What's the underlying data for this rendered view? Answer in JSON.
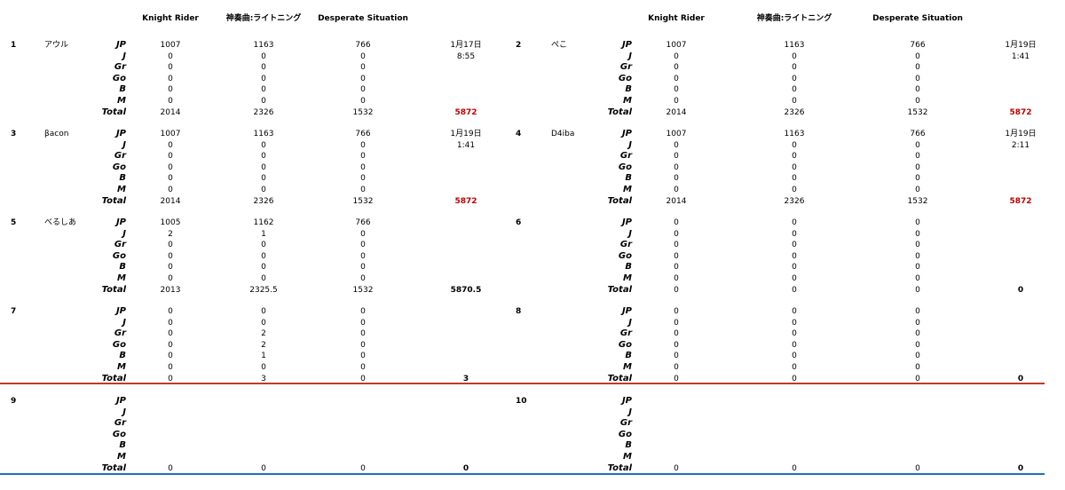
{
  "headers_left": [
    "Knight Rider",
    "神奏曲:ライトニング",
    "Desperate Situation"
  ],
  "headers_right": [
    "Knight Rider",
    "神奏曲:ライトニング",
    "Desperate Situation"
  ],
  "row_labels": [
    "JP",
    "J",
    "Gr",
    "Go",
    "B",
    "M",
    "Total"
  ],
  "blocks": [
    {
      "number": "1",
      "name": "アウル",
      "rows": [
        [
          1007,
          1163,
          766
        ],
        [
          0,
          0,
          0
        ],
        [
          0,
          0,
          0
        ],
        [
          0,
          0,
          0
        ],
        [
          0,
          0,
          0
        ],
        [
          0,
          0,
          0
        ]
      ],
      "total": [
        2014,
        2326,
        1532
      ],
      "grand_total": 5872,
      "total_color": "#c00000",
      "date": "1月17日",
      "time": "8:55"
    },
    {
      "number": "2",
      "name": "ぺこ",
      "rows": [
        [
          1007,
          1163,
          766
        ],
        [
          0,
          0,
          0
        ],
        [
          0,
          0,
          0
        ],
        [
          0,
          0,
          0
        ],
        [
          0,
          0,
          0
        ],
        [
          0,
          0,
          0
        ]
      ],
      "total": [
        2014,
        2326,
        1532
      ],
      "grand_total": 5872,
      "total_color": "#c00000",
      "date": "1月19日",
      "time": "1:41"
    },
    {
      "number": "3",
      "name": "βacon",
      "rows": [
        [
          1007,
          1163,
          766
        ],
        [
          0,
          0,
          0
        ],
        [
          0,
          0,
          0
        ],
        [
          0,
          0,
          0
        ],
        [
          0,
          0,
          0
        ],
        [
          0,
          0,
          0
        ]
      ],
      "total": [
        2014,
        2326,
        1532
      ],
      "grand_total": 5872,
      "total_color": "#c00000",
      "date": "1月19日",
      "time": "1:41"
    },
    {
      "number": "4",
      "name": "D4iba",
      "rows": [
        [
          1007,
          1163,
          766
        ],
        [
          0,
          0,
          0
        ],
        [
          0,
          0,
          0
        ],
        [
          0,
          0,
          0
        ],
        [
          0,
          0,
          0
        ],
        [
          0,
          0,
          0
        ]
      ],
      "total": [
        2014,
        2326,
        1532
      ],
      "grand_total": 5872,
      "total_color": "#c00000",
      "date": "1月19日",
      "time": "2:11"
    },
    {
      "number": "5",
      "name": "べるしあ",
      "rows": [
        [
          1005,
          1162,
          766
        ],
        [
          2,
          1,
          0
        ],
        [
          0,
          0,
          0
        ],
        [
          0,
          0,
          0
        ],
        [
          0,
          0,
          0
        ],
        [
          0,
          0,
          0
        ]
      ],
      "total": [
        2013,
        2325.5,
        1532
      ],
      "grand_total": 5870.5,
      "total_color": "#000000"
    },
    {
      "number": "6",
      "rows": [
        [
          0,
          0,
          0
        ],
        [
          0,
          0,
          0
        ],
        [
          0,
          0,
          0
        ],
        [
          0,
          0,
          0
        ],
        [
          0,
          0,
          0
        ],
        [
          0,
          0,
          0
        ]
      ],
      "total": [
        0,
        0,
        0
      ],
      "grand_total": 0,
      "total_color": "#000000"
    },
    {
      "number": "7",
      "rows": [
        [
          0,
          0,
          0
        ],
        [
          0,
          0,
          0
        ],
        [
          0,
          2,
          0
        ],
        [
          0,
          2,
          0
        ],
        [
          0,
          1,
          0
        ],
        [
          0,
          0,
          0
        ]
      ],
      "total": [
        0,
        3,
        0
      ],
      "grand_total": 3,
      "total_color": "#000000"
    },
    {
      "number": "8",
      "rows": [
        [
          0,
          0,
          0
        ],
        [
          0,
          0,
          0
        ],
        [
          0,
          0,
          0
        ],
        [
          0,
          0,
          0
        ],
        [
          0,
          0,
          0
        ],
        [
          0,
          0,
          0
        ]
      ],
      "total": [
        0,
        0,
        0
      ],
      "grand_total": 0,
      "total_color": "#000000"
    },
    {
      "number": "9",
      "rows": [],
      "total": [
        0,
        0,
        0
      ],
      "grand_total": 0,
      "total_color": "#000000"
    },
    {
      "number": "10",
      "rows": [],
      "total": [
        0,
        0,
        0
      ],
      "grand_total": 0,
      "total_color": "#000000"
    }
  ]
}
